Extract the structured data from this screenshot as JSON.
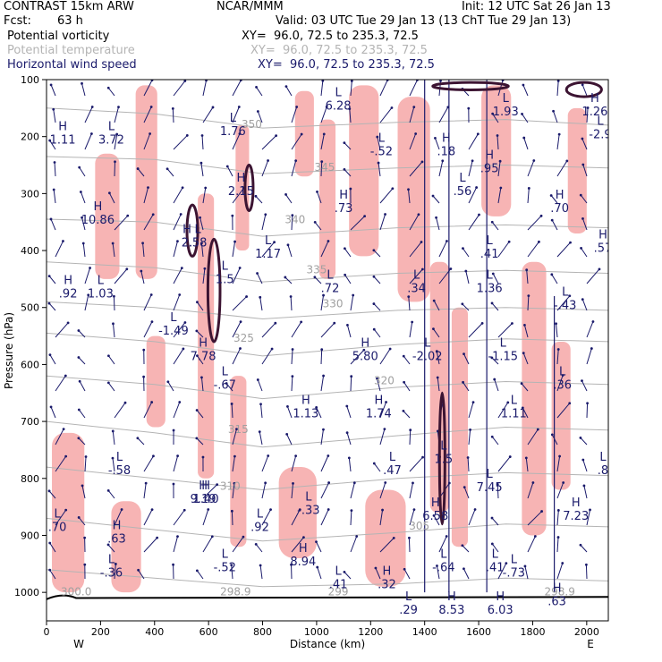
{
  "header": {
    "model": "CONTRAST 15km ARW",
    "center": "NCAR/MMM",
    "init": "Init: 12 UTC Sat 26 Jan 13",
    "fcst_label": "Fcst:",
    "fcst_value": "63 h",
    "valid": "Valid: 03 UTC Tue 29 Jan 13 (13 ChT Tue 29 Jan 13)"
  },
  "fields": [
    {
      "name": "Potential vorticity",
      "xy": "XY=  96.0, 72.5 to 235.3, 72.5",
      "color": "#000000"
    },
    {
      "name": "Potential temperature",
      "xy": "XY=  96.0, 72.5 to 235.3, 72.5",
      "color": "#b4b4b4"
    },
    {
      "name": "Horizontal wind speed",
      "xy": "XY=  96.0, 72.5 to 235.3, 72.5",
      "color": "#1a1a6b"
    }
  ],
  "colors": {
    "shading": "#f7b4b4",
    "wind": "#1a1a6b",
    "theta": "#b4b4b4",
    "pv": "#3c1432",
    "terrain": "#000000"
  },
  "chart_data": {
    "type": "cross-section",
    "xlabel": "Distance (km)",
    "ylabel": "Pressure (hPa)",
    "xlim": [
      0,
      2080
    ],
    "ylim": [
      1050,
      100
    ],
    "x_ticks": [
      "0",
      "200",
      "400",
      "600",
      "800",
      "1000",
      "1200",
      "1400",
      "1600",
      "1800",
      "2000"
    ],
    "y_ticks": [
      "100",
      "200",
      "300",
      "400",
      "500",
      "600",
      "700",
      "800",
      "900",
      "1000"
    ],
    "x_end_labels": {
      "left": "W",
      "right": "E"
    },
    "shading_bands": [
      {
        "x": 330,
        "p": 110,
        "w": 80,
        "h": 340
      },
      {
        "x": 370,
        "p": 550,
        "w": 70,
        "h": 160
      },
      {
        "x": 560,
        "p": 300,
        "w": 60,
        "h": 500
      },
      {
        "x": 700,
        "p": 180,
        "w": 50,
        "h": 220
      },
      {
        "x": 1120,
        "p": 110,
        "w": 110,
        "h": 300
      },
      {
        "x": 1300,
        "p": 130,
        "w": 120,
        "h": 360
      },
      {
        "x": 1420,
        "p": 420,
        "w": 70,
        "h": 440
      },
      {
        "x": 1500,
        "p": 500,
        "w": 60,
        "h": 420
      },
      {
        "x": 1610,
        "p": 110,
        "w": 110,
        "h": 230
      },
      {
        "x": 1760,
        "p": 420,
        "w": 90,
        "h": 480
      },
      {
        "x": 1930,
        "p": 150,
        "w": 70,
        "h": 220
      },
      {
        "x": 20,
        "p": 720,
        "w": 120,
        "h": 280
      },
      {
        "x": 240,
        "p": 840,
        "w": 110,
        "h": 160
      },
      {
        "x": 860,
        "p": 780,
        "w": 140,
        "h": 160
      },
      {
        "x": 1180,
        "p": 820,
        "w": 150,
        "h": 170
      },
      {
        "x": 180,
        "p": 230,
        "w": 90,
        "h": 220
      },
      {
        "x": 920,
        "p": 120,
        "w": 70,
        "h": 150
      },
      {
        "x": 1010,
        "p": 170,
        "w": 60,
        "h": 280
      },
      {
        "x": 1870,
        "p": 560,
        "w": 70,
        "h": 260
      },
      {
        "x": 680,
        "p": 620,
        "w": 60,
        "h": 300
      }
    ],
    "theta_contours": [
      {
        "label": "350",
        "points": [
          [
            0,
            150
          ],
          [
            400,
            160
          ],
          [
            800,
            185
          ],
          [
            1300,
            175
          ],
          [
            1700,
            170
          ],
          [
            2080,
            180
          ]
        ]
      },
      {
        "label": "345",
        "points": [
          [
            0,
            235
          ],
          [
            400,
            240
          ],
          [
            800,
            265
          ],
          [
            1300,
            255
          ],
          [
            1700,
            250
          ],
          [
            2080,
            255
          ]
        ]
      },
      {
        "label": "340",
        "points": [
          [
            0,
            345
          ],
          [
            400,
            350
          ],
          [
            800,
            375
          ],
          [
            1300,
            360
          ],
          [
            1700,
            355
          ],
          [
            2080,
            360
          ]
        ]
      },
      {
        "label": "335",
        "points": [
          [
            0,
            420
          ],
          [
            400,
            430
          ],
          [
            800,
            455
          ],
          [
            1300,
            440
          ],
          [
            1700,
            435
          ],
          [
            2080,
            440
          ]
        ]
      },
      {
        "label": "330",
        "points": [
          [
            0,
            490
          ],
          [
            400,
            500
          ],
          [
            800,
            520
          ],
          [
            1300,
            505
          ],
          [
            1700,
            500
          ],
          [
            2080,
            505
          ]
        ]
      },
      {
        "label": "325",
        "points": [
          [
            0,
            545
          ],
          [
            400,
            560
          ],
          [
            800,
            585
          ],
          [
            1300,
            565
          ],
          [
            1700,
            555
          ],
          [
            2080,
            560
          ]
        ]
      },
      {
        "label": "320",
        "points": [
          [
            0,
            620
          ],
          [
            400,
            635
          ],
          [
            800,
            660
          ],
          [
            1300,
            640
          ],
          [
            1700,
            630
          ],
          [
            2080,
            635
          ]
        ]
      },
      {
        "label": "315",
        "points": [
          [
            0,
            700
          ],
          [
            400,
            720
          ],
          [
            800,
            745
          ],
          [
            1300,
            725
          ],
          [
            1700,
            710
          ],
          [
            2080,
            715
          ]
        ]
      },
      {
        "label": "310",
        "points": [
          [
            0,
            780
          ],
          [
            400,
            800
          ],
          [
            800,
            820
          ],
          [
            1300,
            800
          ],
          [
            1700,
            790
          ],
          [
            2080,
            795
          ]
        ]
      },
      {
        "label": "305",
        "points": [
          [
            0,
            870
          ],
          [
            400,
            890
          ],
          [
            800,
            910
          ],
          [
            1300,
            895
          ],
          [
            1700,
            880
          ],
          [
            2080,
            885
          ]
        ]
      },
      {
        "label": "300",
        "points": [
          [
            0,
            960
          ],
          [
            400,
            975
          ],
          [
            800,
            990
          ],
          [
            1300,
            985
          ],
          [
            1700,
            975
          ],
          [
            2080,
            980
          ]
        ]
      }
    ],
    "theta_labels": [
      {
        "text": "350",
        "x": 760,
        "p": 185
      },
      {
        "text": "345",
        "x": 1030,
        "p": 260
      },
      {
        "text": "340",
        "x": 920,
        "p": 352
      },
      {
        "text": "335",
        "x": 1000,
        "p": 440
      },
      {
        "text": "330",
        "x": 1060,
        "p": 500
      },
      {
        "text": "325",
        "x": 730,
        "p": 560
      },
      {
        "text": "320",
        "x": 1250,
        "p": 635
      },
      {
        "text": "315",
        "x": 710,
        "p": 720
      },
      {
        "text": "310",
        "x": 680,
        "p": 820
      },
      {
        "text": "305",
        "x": 1380,
        "p": 890
      },
      {
        "text": "300.0",
        "x": 110,
        "p": 1005
      },
      {
        "text": "298.9",
        "x": 700,
        "p": 1005
      },
      {
        "text": "299",
        "x": 1080,
        "p": 1005
      },
      {
        "text": "298.9",
        "x": 1900,
        "p": 1005
      }
    ],
    "pv_contours": [
      {
        "x": 540,
        "p_top": 320,
        "p_bottom": 410,
        "width_km": 40
      },
      {
        "x": 620,
        "p_top": 380,
        "p_bottom": 560,
        "width_km": 45
      },
      {
        "x": 750,
        "p_top": 250,
        "p_bottom": 330,
        "width_km": 30
      },
      {
        "x": 1465,
        "p_top": 650,
        "p_bottom": 880,
        "width_km": 20
      },
      {
        "x": 1570,
        "p_top": 105,
        "p_bottom": 118,
        "width_km": 280
      },
      {
        "x": 1990,
        "p_top": 105,
        "p_bottom": 130,
        "width_km": 130
      }
    ],
    "extrema": [
      {
        "type": "H",
        "value": "1.11",
        "x": 60,
        "p": 200
      },
      {
        "type": "L",
        "value": "3.72",
        "x": 240,
        "p": 200
      },
      {
        "type": "H",
        "value": "10.86",
        "x": 190,
        "p": 340
      },
      {
        "type": "H",
        "value": ".92",
        "x": 80,
        "p": 470
      },
      {
        "type": "L",
        "value": "1.03",
        "x": 200,
        "p": 470
      },
      {
        "type": "L",
        "value": "-.58",
        "x": 270,
        "p": 780
      },
      {
        "type": "L",
        "value": ".70",
        "x": 40,
        "p": 880
      },
      {
        "type": "H",
        "value": ".63",
        "x": 260,
        "p": 900
      },
      {
        "type": "L",
        "value": "-.36",
        "x": 240,
        "p": 960
      },
      {
        "type": "L",
        "value": "1.76",
        "x": 690,
        "p": 185
      },
      {
        "type": "H",
        "value": "2.15",
        "x": 720,
        "p": 290
      },
      {
        "type": "H",
        "value": "2.",
        "x": 520,
        "p": 380
      },
      {
        "type": "L",
        "value": ".58",
        "x": 560,
        "p": 380
      },
      {
        "type": "L",
        "value": "1.5",
        "x": 660,
        "p": 445
      },
      {
        "type": "L",
        "value": "1.17",
        "x": 820,
        "p": 400
      },
      {
        "type": "L",
        "value": "-1.49",
        "x": 470,
        "p": 535
      },
      {
        "type": "H",
        "value": "7.78",
        "x": 580,
        "p": 580
      },
      {
        "type": "L",
        "value": "-.67",
        "x": 660,
        "p": 630
      },
      {
        "type": "H",
        "value": "9.19",
        "x": 580,
        "p": 830
      },
      {
        "type": "H",
        "value": "1.40",
        "x": 590,
        "p": 830
      },
      {
        "type": "L",
        "value": ".92",
        "x": 790,
        "p": 880
      },
      {
        "type": "L",
        "value": "-.52",
        "x": 660,
        "p": 950
      },
      {
        "type": "L",
        "value": "6.28",
        "x": 1080,
        "p": 140
      },
      {
        "type": "L",
        "value": "-.52",
        "x": 1240,
        "p": 220
      },
      {
        "type": "H",
        "value": ".73",
        "x": 1100,
        "p": 320
      },
      {
        "type": "L",
        "value": ".72",
        "x": 1050,
        "p": 460
      },
      {
        "type": "H",
        "value": "5.80",
        "x": 1180,
        "p": 580
      },
      {
        "type": "H",
        "value": "1.13",
        "x": 960,
        "p": 680
      },
      {
        "type": "H",
        "value": "1.74",
        "x": 1230,
        "p": 680
      },
      {
        "type": "L",
        "value": "-.33",
        "x": 970,
        "p": 850
      },
      {
        "type": "H",
        "value": "8.94",
        "x": 950,
        "p": 940
      },
      {
        "type": "L",
        "value": ".41",
        "x": 1080,
        "p": 980
      },
      {
        "type": "H",
        "value": ".32",
        "x": 1260,
        "p": 980
      },
      {
        "type": "L",
        "value": ".47",
        "x": 1280,
        "p": 780
      },
      {
        "type": "H",
        "value": ".18",
        "x": 1480,
        "p": 220
      },
      {
        "type": "L",
        "value": ".34",
        "x": 1370,
        "p": 460
      },
      {
        "type": "L",
        "value": "-2.02",
        "x": 1410,
        "p": 580
      },
      {
        "type": "L",
        "value": "1.5",
        "x": 1470,
        "p": 760
      },
      {
        "type": "H",
        "value": "6.58",
        "x": 1440,
        "p": 860
      },
      {
        "type": "L",
        "value": "-.64",
        "x": 1470,
        "p": 950
      },
      {
        "type": "L",
        "value": ".56",
        "x": 1540,
        "p": 290
      },
      {
        "type": "H",
        "value": ".95",
        "x": 1640,
        "p": 250
      },
      {
        "type": "L",
        "value": "1.93",
        "x": 1700,
        "p": 150
      },
      {
        "type": "L",
        "value": ".41",
        "x": 1640,
        "p": 400
      },
      {
        "type": "L",
        "value": "1.36",
        "x": 1640,
        "p": 460
      },
      {
        "type": "L",
        "value": "-1.15",
        "x": 1690,
        "p": 580
      },
      {
        "type": "L",
        "value": "1.11",
        "x": 1730,
        "p": 680
      },
      {
        "type": "L",
        "value": "7.45",
        "x": 1640,
        "p": 810
      },
      {
        "type": "L",
        "value": ".41",
        "x": 1660,
        "p": 950
      },
      {
        "type": "L",
        "value": "-.73",
        "x": 1730,
        "p": 960
      },
      {
        "type": "H",
        "value": ".70",
        "x": 1900,
        "p": 320
      },
      {
        "type": "L",
        "value": "-.43",
        "x": 1920,
        "p": 490
      },
      {
        "type": "L",
        "value": ".36",
        "x": 1910,
        "p": 630
      },
      {
        "type": "H",
        "value": "7.23",
        "x": 1960,
        "p": 860
      },
      {
        "type": "H",
        "value": ".63",
        "x": 1890,
        "p": 1010
      },
      {
        "type": "H",
        "value": "8.53",
        "x": 1500,
        "p": 1025
      },
      {
        "type": "H",
        "value": "6.03",
        "x": 1680,
        "p": 1025
      },
      {
        "type": "L",
        "value": ".29",
        "x": 1340,
        "p": 1025
      },
      {
        "type": "H",
        "value": "1.26",
        "x": 2030,
        "p": 150
      },
      {
        "type": "L",
        "value": "-2.9",
        "x": 2050,
        "p": 190
      },
      {
        "type": "H",
        "value": ".57",
        "x": 2060,
        "p": 390
      },
      {
        "type": "L",
        "value": ".8",
        "x": 2060,
        "p": 780
      }
    ]
  }
}
